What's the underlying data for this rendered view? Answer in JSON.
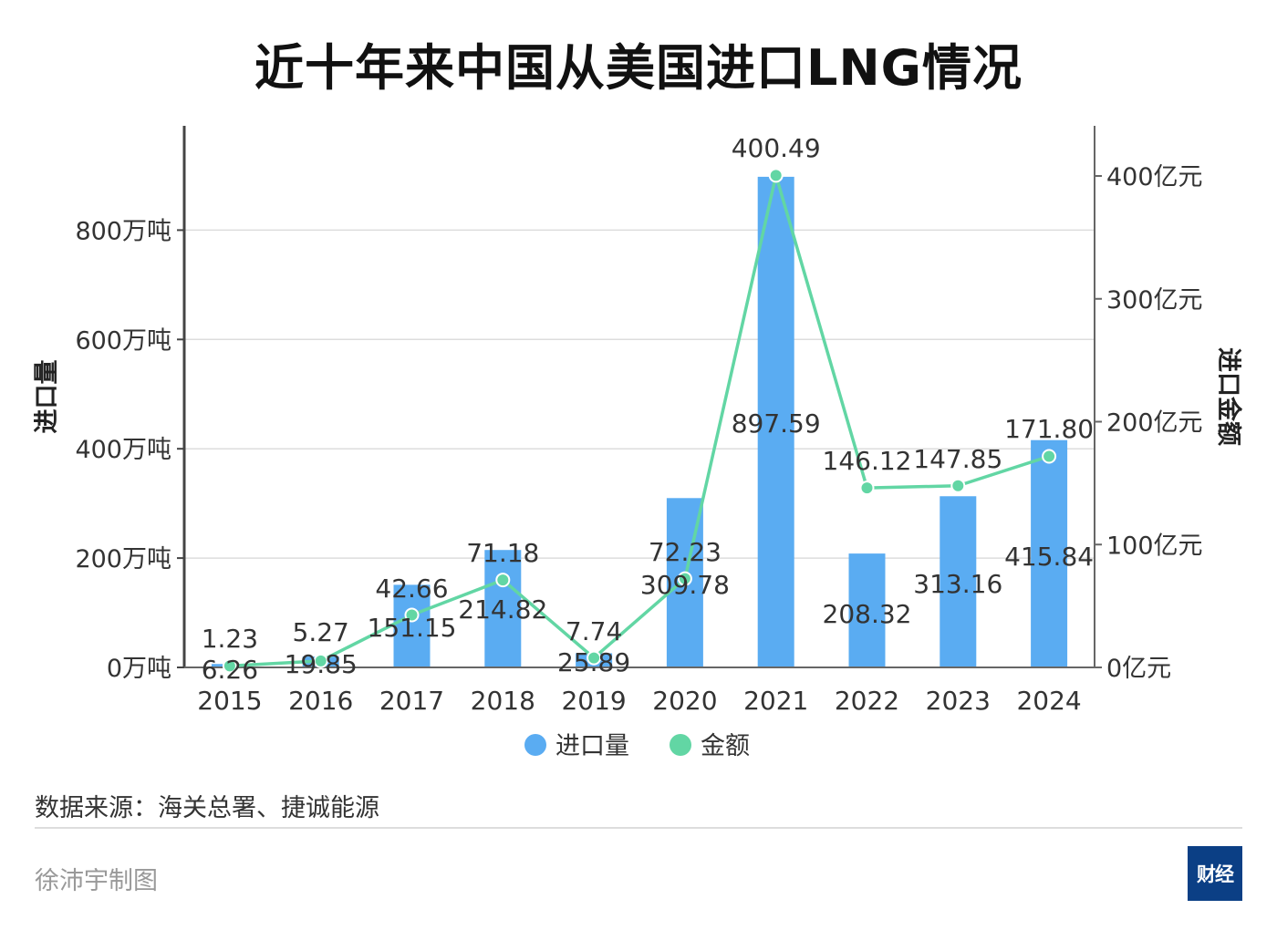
{
  "chart_data": {
    "type": "bar+line",
    "title": "近十年来中国从美国进口LNG情况",
    "categories": [
      "2015",
      "2016",
      "2017",
      "2018",
      "2019",
      "2020",
      "2021",
      "2022",
      "2023",
      "2024"
    ],
    "series": [
      {
        "name": "进口量",
        "type": "bar",
        "axis": "left",
        "values": [
          6.26,
          19.85,
          151.15,
          214.82,
          25.89,
          309.78,
          897.59,
          208.32,
          313.16,
          415.84
        ],
        "labels": [
          "6.26",
          "19.85",
          "151.15",
          "214.82",
          "25.89",
          "309.78",
          "897.59",
          "208.32",
          "313.16",
          "415.84"
        ],
        "color": "#5aacf2"
      },
      {
        "name": "金额",
        "type": "line",
        "axis": "right",
        "values": [
          1.23,
          5.27,
          42.66,
          71.18,
          7.74,
          72.23,
          400.49,
          146.12,
          147.85,
          171.8
        ],
        "labels": [
          "1.23",
          "5.27",
          "42.66",
          "71.18",
          "7.74",
          "72.23",
          "400.49",
          "146.12",
          "147.85",
          "171.80"
        ],
        "color": "#62d6a4"
      }
    ],
    "left_axis": {
      "label": "进口量",
      "ylim": [
        0,
        1000
      ],
      "ticks": [
        0,
        200,
        400,
        600,
        800
      ],
      "tick_labels": [
        "0万吨",
        "200万吨",
        "400万吨",
        "600万吨",
        "800万吨"
      ]
    },
    "right_axis": {
      "label": "进口金额",
      "ylim": [
        0,
        444
      ],
      "ticks": [
        0,
        100,
        200,
        300,
        400
      ],
      "tick_labels": [
        "0亿元",
        "100亿元",
        "200亿元",
        "300亿元",
        "400亿元"
      ]
    },
    "grid": true,
    "legend_position": "bottom-center"
  },
  "footer": {
    "source": "数据来源：海关总署、捷诚能源",
    "credit": "徐沛宇制图",
    "logo_text": "财经"
  },
  "colors": {
    "bar": "#5aacf2",
    "line": "#62d6a4",
    "grid": "#dddddd",
    "axis": "#444444",
    "logo_bg": "#0b3f85"
  }
}
